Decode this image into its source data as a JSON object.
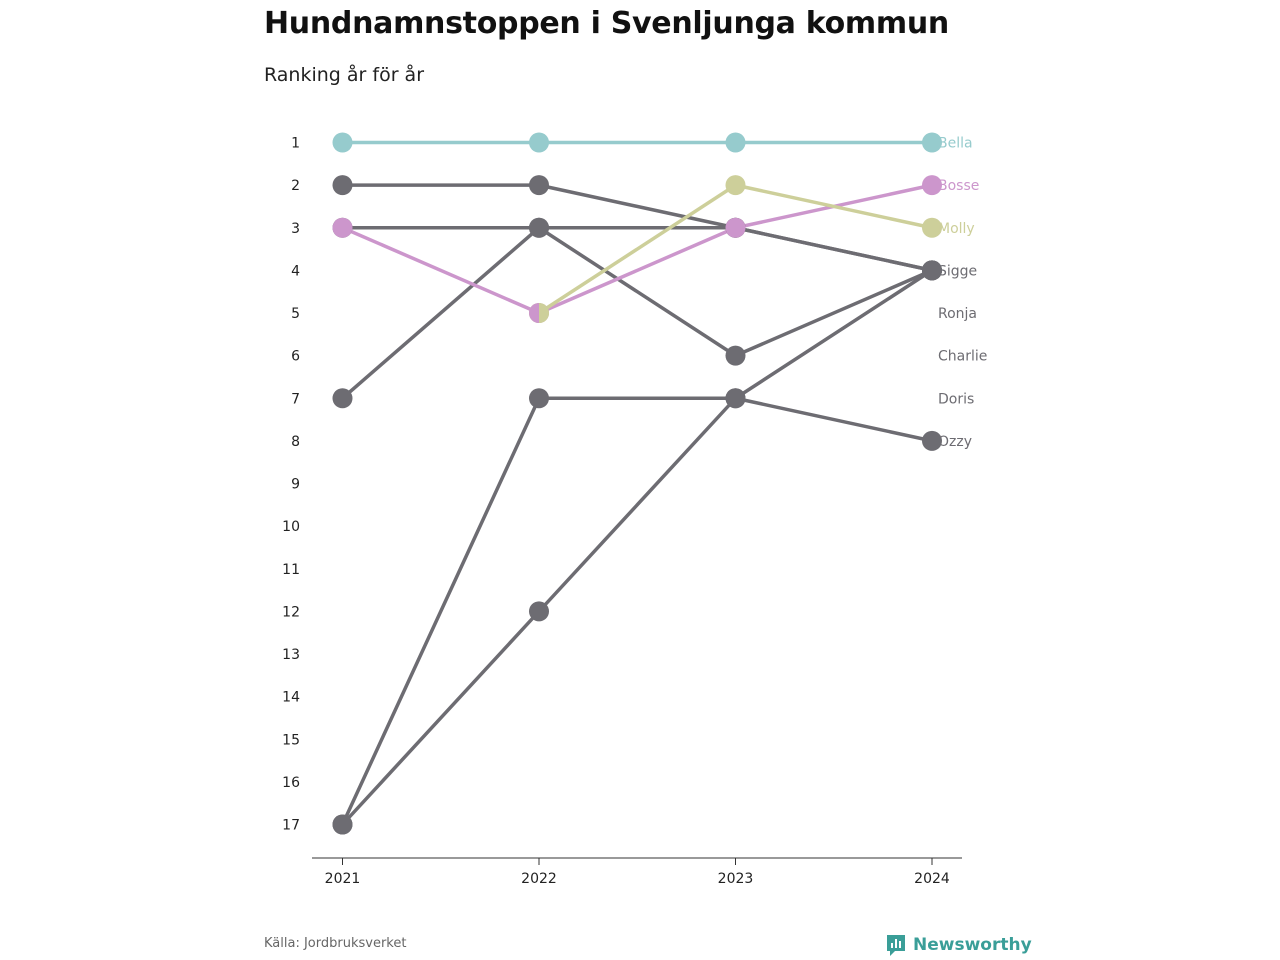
{
  "header": {
    "title": "Hundnamnstoppen i Svenljunga kommun",
    "subtitle": "Ranking år för år"
  },
  "footer": {
    "source": "Källa: Jordbruksverket",
    "brand": "Newsworthy"
  },
  "colors": {
    "Bella": "#96cbcd",
    "Bosse": "#cc96cc",
    "Molly": "#cdcf9a",
    "other": "#6d6c72",
    "axis": "#333333",
    "brand": "#3a9e98"
  },
  "chart_data": {
    "type": "line",
    "x": [
      "2021",
      "2022",
      "2023",
      "2024"
    ],
    "y_ticks": [
      "1",
      "2",
      "3",
      "4",
      "5",
      "6",
      "7",
      "8",
      "9",
      "10",
      "11",
      "12",
      "13",
      "14",
      "15",
      "16",
      "17"
    ],
    "ylim": [
      1,
      17
    ],
    "y_inverted": true,
    "grid": false,
    "series": [
      {
        "name": "Bella",
        "values": [
          1,
          1,
          1,
          1
        ],
        "color": "#96cbcd"
      },
      {
        "name": "Bosse",
        "values": [
          3,
          5,
          3,
          2
        ],
        "color": "#cc96cc"
      },
      {
        "name": "Molly",
        "values": [
          null,
          5,
          2,
          3
        ],
        "color": "#cdcf9a"
      },
      {
        "name": "Sigge",
        "values": [
          2,
          2,
          3,
          4
        ],
        "color": "#6d6c72"
      },
      {
        "name": "Ronja",
        "values": [
          3,
          3,
          3,
          4
        ],
        "color": "#6d6c72"
      },
      {
        "name": "Charlie",
        "values": [
          7,
          3,
          6,
          4
        ],
        "color": "#6d6c72"
      },
      {
        "name": "Doris",
        "values": [
          17,
          12,
          7,
          4
        ],
        "color": "#6d6c72"
      },
      {
        "name": "Ozzy",
        "values": [
          17,
          7,
          7,
          8
        ],
        "color": "#6d6c72"
      }
    ]
  }
}
